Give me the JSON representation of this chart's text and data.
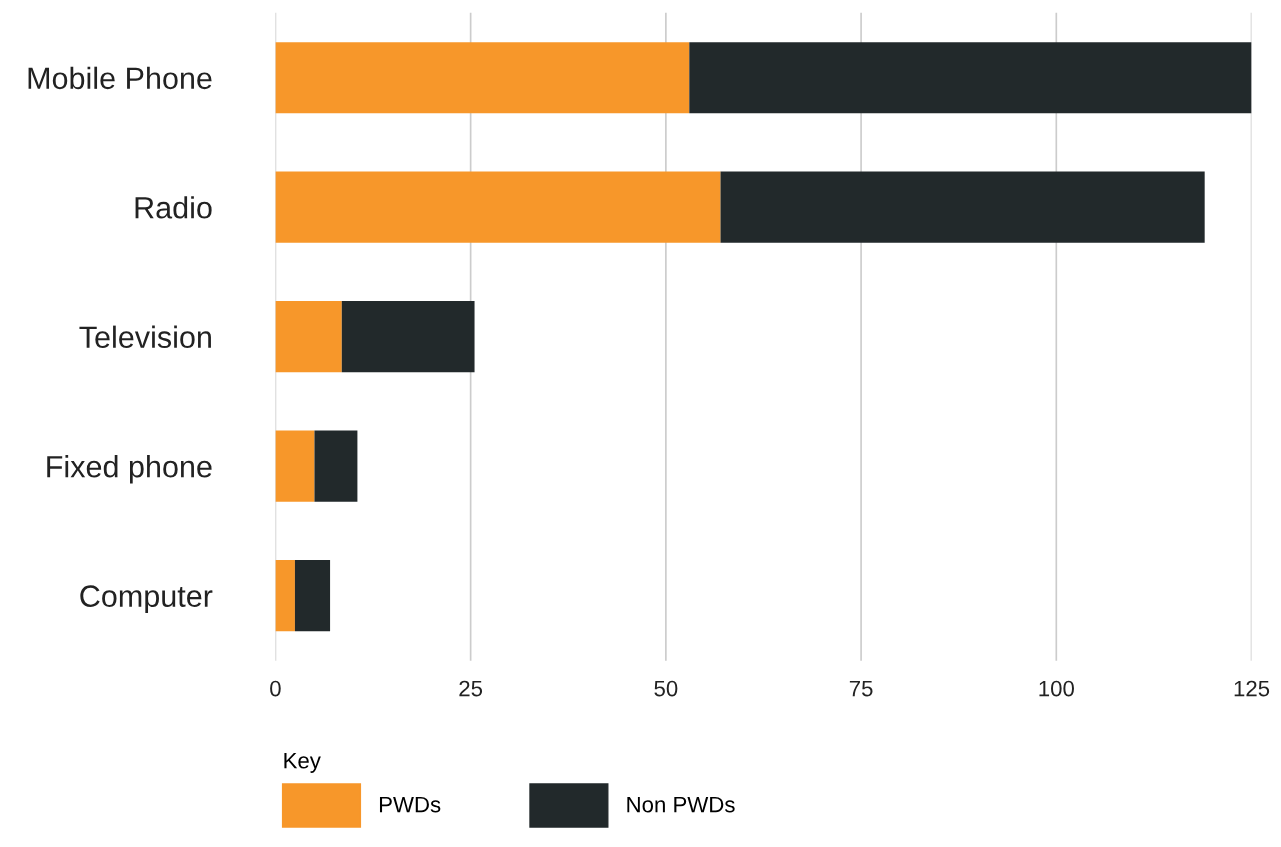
{
  "chart_data": {
    "type": "bar",
    "orientation": "horizontal",
    "stacked": true,
    "categories": [
      "Mobile Phone",
      "Radio",
      "Television",
      "Fixed phone",
      "Computer"
    ],
    "series": [
      {
        "name": "PWDs",
        "color": "#f7972a",
        "values": [
          53,
          57,
          8.5,
          5,
          2.5
        ]
      },
      {
        "name": "Non PWDs",
        "color": "#22292b",
        "values": [
          72,
          62,
          17,
          5.5,
          4.5
        ]
      }
    ],
    "xlim": [
      0,
      125
    ],
    "xticks": [
      0,
      25,
      50,
      75,
      100,
      125
    ],
    "grid": "x",
    "legend": "bottom left",
    "legend_title": "Key"
  }
}
